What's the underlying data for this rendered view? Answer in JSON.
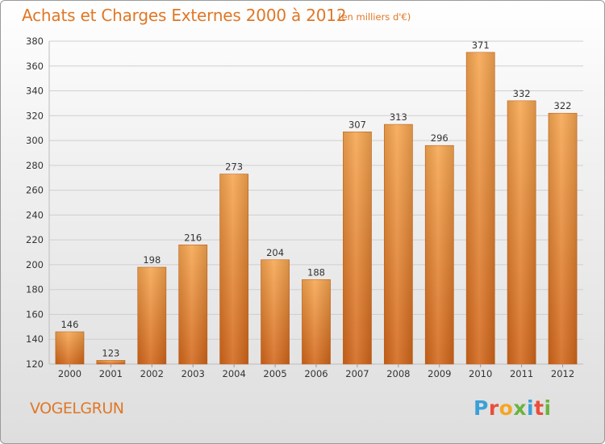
{
  "header": {
    "title": "Achats et Charges Externes 2000 à 2012",
    "unit": "(en milliers d'€)"
  },
  "footer": {
    "commune": "VOGELGRUN",
    "logo_text": "Proxiti",
    "logo_colors": [
      "#3aa0d8",
      "#e94e3a",
      "#f5a623",
      "#6ab43e",
      "#3aa0d8",
      "#e94e3a",
      "#6ab43e"
    ]
  },
  "colors": {
    "bar_light": "#f6a650",
    "bar_dark": "#d2661a",
    "grid": "#cfcfcf",
    "axis_text": "#333333",
    "accent": "#e07726"
  },
  "chart_data": {
    "type": "bar",
    "title": "Achats et Charges Externes 2000 à 2012",
    "subtitle": "(en milliers d'€)",
    "categories": [
      "2000",
      "2001",
      "2002",
      "2003",
      "2004",
      "2005",
      "2006",
      "2007",
      "2008",
      "2009",
      "2010",
      "2011",
      "2012"
    ],
    "values": [
      146,
      123,
      198,
      216,
      273,
      204,
      188,
      307,
      313,
      296,
      371,
      332,
      322
    ],
    "ylim": [
      120,
      380
    ],
    "yticks": [
      120,
      140,
      160,
      180,
      200,
      220,
      240,
      260,
      280,
      300,
      320,
      340,
      360,
      380
    ],
    "grid": true,
    "xlabel": "",
    "ylabel": ""
  }
}
